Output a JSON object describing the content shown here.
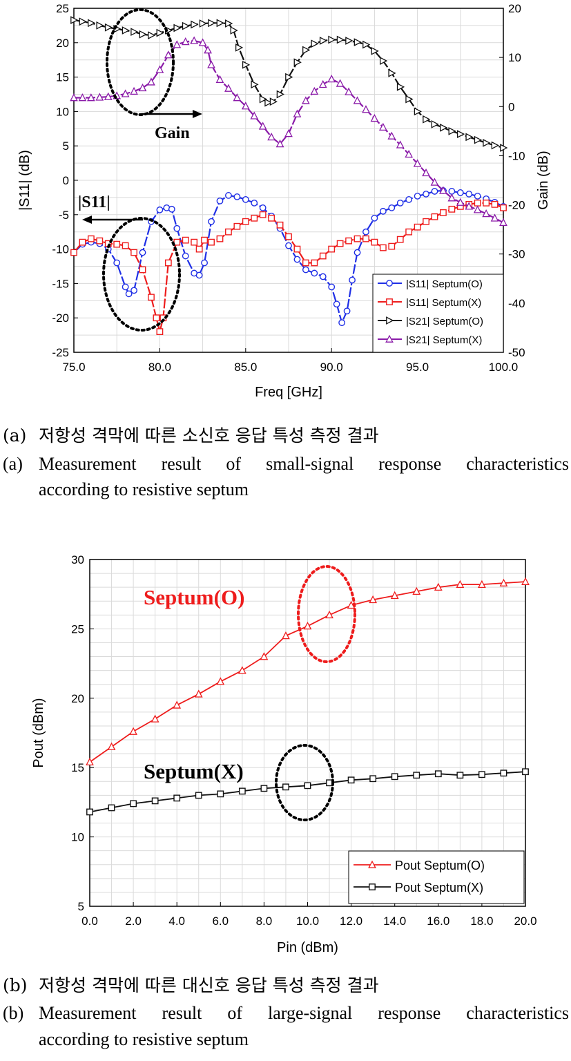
{
  "charts": [
    {
      "axes": {
        "y_left": {
          "label": "|S11| (dB)",
          "ticks": [
            "25",
            "20",
            "15",
            "10",
            "5",
            "0",
            "-5",
            "-10",
            "-15",
            "-20",
            "-25"
          ]
        },
        "y_right": {
          "label": "Gain (dB)",
          "ticks": [
            "20",
            "10",
            "0",
            "-10",
            "-20",
            "-30",
            "-40",
            "-50"
          ]
        },
        "x": {
          "label": "Freq [GHz]",
          "ticks": [
            "75.0",
            "80.0",
            "85.0",
            "90.0",
            "95.0",
            "100.0"
          ]
        }
      },
      "annotations": {
        "gain": "Gain",
        "s11": "|S11|"
      },
      "legend": [
        "|S11| Septum(O)",
        "|S11| Septum(X)",
        "|S21| Septum(O)",
        "|S21| Septum(X)"
      ]
    },
    {
      "axes": {
        "y": {
          "label": "Pout (dBm)",
          "ticks": [
            "30",
            "25",
            "20",
            "15",
            "10",
            "5"
          ]
        },
        "x": {
          "label": "Pin (dBm)",
          "ticks": [
            "0.0",
            "2.0",
            "4.0",
            "6.0",
            "8.0",
            "10.0",
            "12.0",
            "14.0",
            "16.0",
            "18.0",
            "20.0"
          ]
        }
      },
      "annotations": {
        "o": "Septum(O)",
        "x": "Septum(X)"
      },
      "legend": [
        "Pout Septum(O)",
        "Pout Septum(X)"
      ]
    }
  ],
  "captions": {
    "a_label": "(a)",
    "a_ko": "저항성 격막에 따른 소신호 응답 특성 측정 결과",
    "a_en_1": "Measurement result of small-signal response characteristics",
    "a_en_2": "according to resistive septum",
    "b_label": "(b)",
    "b_ko": "저항성 격막에 따른 대신호 응답 특성 측정 결과",
    "b_en_1": "Measurement result of large-signal response characteristics",
    "b_en_2": "according to resistive septum"
  },
  "colors": {
    "blue": "#1f2fe6",
    "red": "#ee1c1c",
    "black": "#111111",
    "purple": "#8a1aa8"
  },
  "chart_data": [
    {
      "type": "line",
      "x_unit": "GHz",
      "xlim": [
        75,
        100
      ],
      "ylim_left": [
        -25,
        25
      ],
      "ylim_right": [
        -50,
        20
      ],
      "grid": true,
      "legend_position": "bottom-right",
      "series": [
        {
          "name": "|S11| Septum(O)",
          "axis": "left",
          "color": "#1f2fe6",
          "marker": "circle",
          "x": [
            75,
            75.5,
            76,
            76.5,
            77,
            77.5,
            78,
            78.2,
            78.5,
            79,
            79.5,
            80,
            80.4,
            80.7,
            81,
            81.5,
            82,
            82.3,
            82.6,
            83,
            83.5,
            84,
            84.5,
            85,
            85.5,
            86,
            86.5,
            87,
            87.5,
            88,
            88.5,
            89,
            89.5,
            90,
            90.3,
            90.6,
            90.9,
            91.2,
            91.5,
            92,
            92.5,
            93,
            93.5,
            94,
            94.5,
            95,
            95.5,
            96,
            96.5,
            97,
            97.5,
            98,
            98.5,
            99,
            99.5,
            100
          ],
          "y": [
            -10.5,
            -9.3,
            -9,
            -9.2,
            -10,
            -12,
            -15.5,
            -16.5,
            -16,
            -10.5,
            -6,
            -4.3,
            -4,
            -4.2,
            -7,
            -11,
            -13.5,
            -13.8,
            -12,
            -6,
            -3,
            -2.2,
            -2.4,
            -2.8,
            -3.3,
            -4,
            -5.2,
            -7,
            -9.5,
            -11.5,
            -13,
            -13.5,
            -14,
            -15.5,
            -18,
            -20.7,
            -19,
            -14.5,
            -10.5,
            -7.5,
            -5.5,
            -4.5,
            -4,
            -3.3,
            -2.8,
            -2.3,
            -2,
            -1.6,
            -1.5,
            -1.6,
            -1.8,
            -2,
            -2.3,
            -2.7,
            -3.2,
            -3.8
          ]
        },
        {
          "name": "|S11| Septum(X)",
          "axis": "left",
          "color": "#ee1c1c",
          "marker": "square",
          "x": [
            75,
            75.5,
            76,
            76.5,
            77,
            77.5,
            78,
            78.5,
            79,
            79.5,
            79.8,
            80,
            80.2,
            80.5,
            81,
            81.5,
            82,
            82.3,
            82.6,
            83,
            83.5,
            84,
            84.5,
            85,
            85.5,
            86,
            86.5,
            87,
            87.5,
            88,
            88.5,
            89,
            89.5,
            90,
            90.5,
            91,
            91.5,
            92,
            92.5,
            93,
            93.5,
            94,
            94.5,
            95,
            95.5,
            96,
            96.5,
            97,
            97.5,
            98,
            98.5,
            99,
            99.5,
            100
          ],
          "y": [
            -10.5,
            -9,
            -8.5,
            -8.8,
            -9.2,
            -9.3,
            -9.5,
            -10.5,
            -13,
            -17,
            -20,
            -22,
            -20,
            -12,
            -9,
            -8.7,
            -9,
            -10,
            -8.7,
            -9,
            -8.5,
            -7.5,
            -6.7,
            -6,
            -5.5,
            -5,
            -5.5,
            -6.5,
            -8.2,
            -10,
            -12,
            -12,
            -11,
            -10,
            -9.2,
            -8.8,
            -8.5,
            -8.5,
            -9,
            -9.8,
            -9.6,
            -8.6,
            -7.5,
            -6.8,
            -6,
            -5.3,
            -4.7,
            -4.2,
            -3.8,
            -3.5,
            -3.3,
            -3.3,
            -3.5,
            -4
          ]
        },
        {
          "name": "|S21| Septum(O)",
          "axis": "right",
          "color": "#111111",
          "marker": "triangle-right",
          "x": [
            75,
            75.5,
            76,
            76.5,
            77,
            77.5,
            78,
            78.5,
            79,
            79.5,
            80,
            80.5,
            81,
            81.5,
            82,
            82.5,
            83,
            83.5,
            84,
            84.3,
            84.6,
            85,
            85.5,
            86,
            86.3,
            86.6,
            87,
            87.5,
            88,
            88.5,
            89,
            89.5,
            90,
            90.5,
            91,
            91.5,
            92,
            92.5,
            93,
            93.5,
            94,
            94.5,
            95,
            95.5,
            96,
            96.5,
            97,
            97.5,
            98,
            98.5,
            99,
            99.5,
            100
          ],
          "y": [
            17.6,
            17.3,
            17,
            16.5,
            16.1,
            15.8,
            15.5,
            15.2,
            14.7,
            14.5,
            15,
            15.5,
            16,
            16.4,
            16.7,
            16.9,
            17,
            17,
            16.9,
            15.5,
            12,
            8.5,
            4.5,
            1.5,
            0.8,
            1,
            2.5,
            6,
            9,
            11.5,
            12.8,
            13.4,
            13.6,
            13.6,
            13.4,
            13.1,
            12.6,
            11.3,
            9.3,
            6.8,
            4,
            1.5,
            -1,
            -2.6,
            -3.6,
            -4.3,
            -5,
            -5.6,
            -6.2,
            -6.8,
            -7.4,
            -7.9,
            -8.4
          ]
        },
        {
          "name": "|S21| Septum(X)",
          "axis": "right",
          "color": "#8a1aa8",
          "marker": "triangle-up",
          "x": [
            75,
            75.5,
            76,
            76.5,
            77,
            77.5,
            78,
            78.5,
            79,
            79.5,
            80,
            80.5,
            81,
            81.5,
            82,
            82.5,
            82.8,
            83,
            83.5,
            84,
            84.5,
            85,
            85.5,
            86,
            86.5,
            87,
            87.5,
            88,
            88.5,
            89,
            89.5,
            90,
            90.5,
            91,
            91.5,
            92,
            92.5,
            93,
            93.5,
            94,
            94.5,
            95,
            95.5,
            96,
            96.5,
            97,
            97.5,
            98,
            98.5,
            99,
            99.5,
            100
          ],
          "y": [
            1.8,
            1.8,
            1.8,
            1.9,
            2,
            2.2,
            2.6,
            3.1,
            3.8,
            5,
            7.5,
            10.5,
            12.6,
            13.2,
            13.4,
            13,
            11.5,
            8.5,
            5.5,
            3.7,
            1.8,
            0.1,
            -1.9,
            -4,
            -6.2,
            -7.6,
            -5.5,
            -1.5,
            1.2,
            3.1,
            4.5,
            5.6,
            4.7,
            3,
            1.2,
            -0.6,
            -2.4,
            -4.2,
            -6,
            -7.8,
            -9.7,
            -11.6,
            -13.5,
            -15.4,
            -17.1,
            -18.6,
            -19.5,
            -20.3,
            -21,
            -21.8,
            -22.7,
            -23.6
          ]
        }
      ]
    },
    {
      "type": "line",
      "x_unit": "dBm",
      "xlim": [
        0,
        20
      ],
      "ylim": [
        5,
        30
      ],
      "grid": true,
      "legend_position": "bottom-right",
      "series": [
        {
          "name": "Pout Septum(O)",
          "color": "#ee1c1c",
          "marker": "triangle-up",
          "x": [
            0,
            1,
            2,
            3,
            4,
            5,
            6,
            7,
            8,
            9,
            10,
            11,
            12,
            13,
            14,
            15,
            16,
            17,
            18,
            19,
            20
          ],
          "y": [
            15.4,
            16.5,
            17.6,
            18.5,
            19.5,
            20.3,
            21.2,
            22,
            23,
            24.5,
            25.2,
            26,
            26.7,
            27.1,
            27.4,
            27.7,
            28,
            28.2,
            28.2,
            28.3,
            28.4
          ]
        },
        {
          "name": "Pout Septum(X)",
          "color": "#111111",
          "marker": "square",
          "x": [
            0,
            1,
            2,
            3,
            4,
            5,
            6,
            7,
            8,
            9,
            10,
            11,
            12,
            13,
            14,
            15,
            16,
            17,
            18,
            19,
            20
          ],
          "y": [
            11.8,
            12.1,
            12.4,
            12.6,
            12.8,
            13,
            13.1,
            13.3,
            13.5,
            13.6,
            13.7,
            13.9,
            14.1,
            14.2,
            14.35,
            14.45,
            14.55,
            14.45,
            14.5,
            14.6,
            14.7
          ]
        }
      ]
    }
  ]
}
